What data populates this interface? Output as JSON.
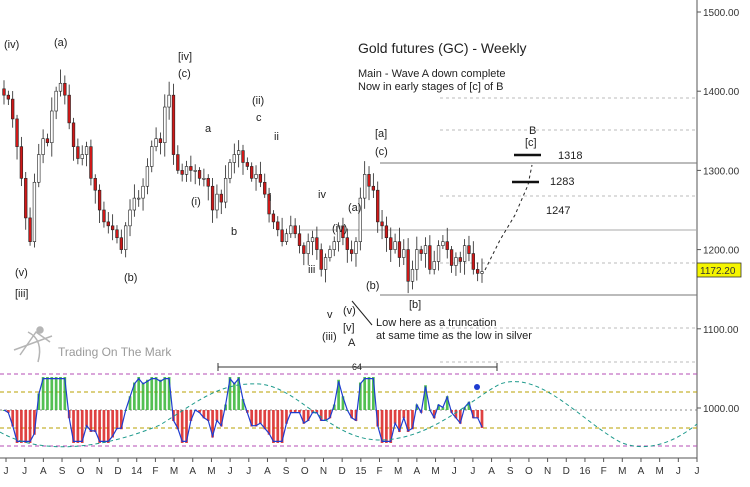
{
  "chart_data": {
    "type": "candlestick",
    "title": "Gold futures (GC) - Weekly",
    "subtitle_lines": [
      "Main - Wave A down complete",
      "Now in early stages of [c] of B"
    ],
    "watermark": "Trading On The Mark",
    "current_price_label": "1172.20",
    "current_price": 1172.2,
    "y_ticks": [
      {
        "value": 1500,
        "label": "1500.00"
      },
      {
        "value": 1400,
        "label": "1400.00"
      },
      {
        "value": 1300,
        "label": "1300.00"
      },
      {
        "value": 1200,
        "label": "1200.00"
      },
      {
        "value": 1100,
        "label": "1100.00"
      },
      {
        "value": 1000,
        "label": "1000.00"
      }
    ],
    "x_ticks": [
      "J",
      "J",
      "A",
      "S",
      "O",
      "N",
      "D",
      "14",
      "F",
      "M",
      "A",
      "M",
      "J",
      "J",
      "A",
      "S",
      "O",
      "N",
      "D",
      "15",
      "F",
      "M",
      "A",
      "M",
      "J",
      "J",
      "A",
      "S",
      "O",
      "N",
      "D",
      "16",
      "F",
      "M",
      "A",
      "M",
      "J",
      "J"
    ],
    "target_levels": [
      {
        "label": "1318",
        "value": 1318
      },
      {
        "label": "1283",
        "value": 1283
      },
      {
        "label": "1247",
        "value": 1247
      }
    ],
    "cycle_label": "64",
    "price_close": [
      1395,
      1390,
      1365,
      1330,
      1290,
      1240,
      1210,
      1285,
      1320,
      1340,
      1335,
      1375,
      1400,
      1410,
      1395,
      1360,
      1330,
      1315,
      1320,
      1330,
      1290,
      1275,
      1250,
      1235,
      1230,
      1225,
      1215,
      1200,
      1230,
      1250,
      1265,
      1265,
      1280,
      1305,
      1330,
      1340,
      1335,
      1380,
      1395,
      1320,
      1300,
      1295,
      1305,
      1300,
      1300,
      1290,
      1290,
      1280,
      1250,
      1270,
      1260,
      1290,
      1310,
      1320,
      1325,
      1310,
      1305,
      1290,
      1295,
      1285,
      1270,
      1245,
      1235,
      1225,
      1210,
      1220,
      1230,
      1220,
      1205,
      1195,
      1210,
      1215,
      1200,
      1175,
      1190,
      1200,
      1210,
      1230,
      1215,
      1200,
      1195,
      1210,
      1265,
      1295,
      1280,
      1275,
      1235,
      1230,
      1215,
      1200,
      1210,
      1190,
      1200,
      1160,
      1175,
      1200,
      1195,
      1205,
      1175,
      1185,
      1205,
      1210,
      1200,
      1180,
      1190,
      1185,
      1205,
      1195,
      1175,
      1170,
      1172.2
    ],
    "wave_labels": [
      "(iv)",
      "(v)",
      "[iii]",
      "(a)",
      "(b)",
      "[iv]",
      "(c)",
      "a",
      "(i)",
      "b",
      "(ii)",
      "c",
      "ii",
      "i",
      "iii",
      "iv",
      "v",
      "(iii)",
      "(iv)",
      "(a)",
      "(v)",
      "[v]",
      "A",
      "(b)",
      "[a]",
      "(c)",
      "[b]",
      "B",
      "[c]"
    ],
    "annotations": [
      "Low here as a truncation",
      "at same time as the low in silver"
    ],
    "oscillator_ylim": [
      -1,
      1
    ]
  }
}
